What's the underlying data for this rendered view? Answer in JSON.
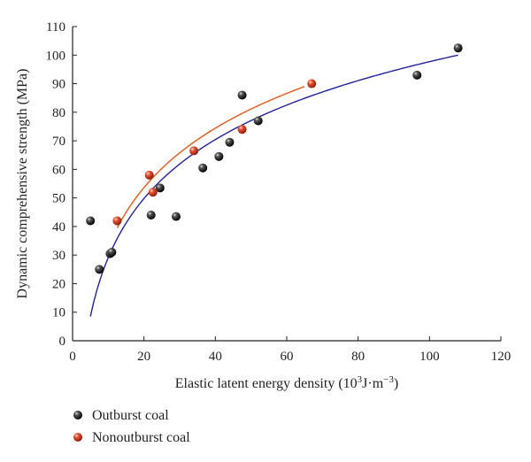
{
  "chart_data": {
    "type": "scatter",
    "xlabel": "Elastic latent energy density (10^3J·m^−3)",
    "xlabel_parts": {
      "prefix": "Elastic latent energy density (10",
      "exp": "3",
      "mid": "J·m",
      "exp2": "−3",
      "suffix": ")"
    },
    "ylabel": "Dynamic comprehensive strength (MPa)",
    "xlim": [
      0,
      120
    ],
    "ylim": [
      0,
      110
    ],
    "xticks": [
      0,
      20,
      40,
      60,
      80,
      100,
      120
    ],
    "yticks": [
      0,
      10,
      20,
      30,
      40,
      50,
      60,
      70,
      80,
      90,
      100,
      110
    ],
    "grid": false,
    "legend_position": "bottom-left, below plot",
    "series": [
      {
        "name": "Outburst coal",
        "color": "#1a1a1a",
        "marker": "sphere",
        "points": [
          [
            5,
            42
          ],
          [
            7.5,
            25
          ],
          [
            10.5,
            30.5
          ],
          [
            11,
            31
          ],
          [
            22,
            44
          ],
          [
            24.5,
            53.5
          ],
          [
            29,
            43.5
          ],
          [
            36.5,
            60.5
          ],
          [
            41,
            64.5
          ],
          [
            44,
            69.5
          ],
          [
            47.5,
            86
          ],
          [
            52,
            77
          ],
          [
            96.5,
            93
          ],
          [
            108,
            102.5
          ]
        ],
        "fit": {
          "color": "#22229a",
          "x_range": [
            5,
            108
          ],
          "y_at_start": 8.5,
          "y_at_end": 100
        }
      },
      {
        "name": "Nonoutburst coal",
        "color": "#d23a20",
        "marker": "sphere",
        "points": [
          [
            12.5,
            42
          ],
          [
            21.5,
            58
          ],
          [
            22.5,
            52
          ],
          [
            34,
            66.5
          ],
          [
            47.5,
            74
          ],
          [
            67,
            90
          ]
        ],
        "fit": {
          "color": "#e05a18",
          "x_range": [
            12.5,
            65
          ],
          "y_at_start": 39.5,
          "y_at_end": 89
        }
      }
    ]
  }
}
